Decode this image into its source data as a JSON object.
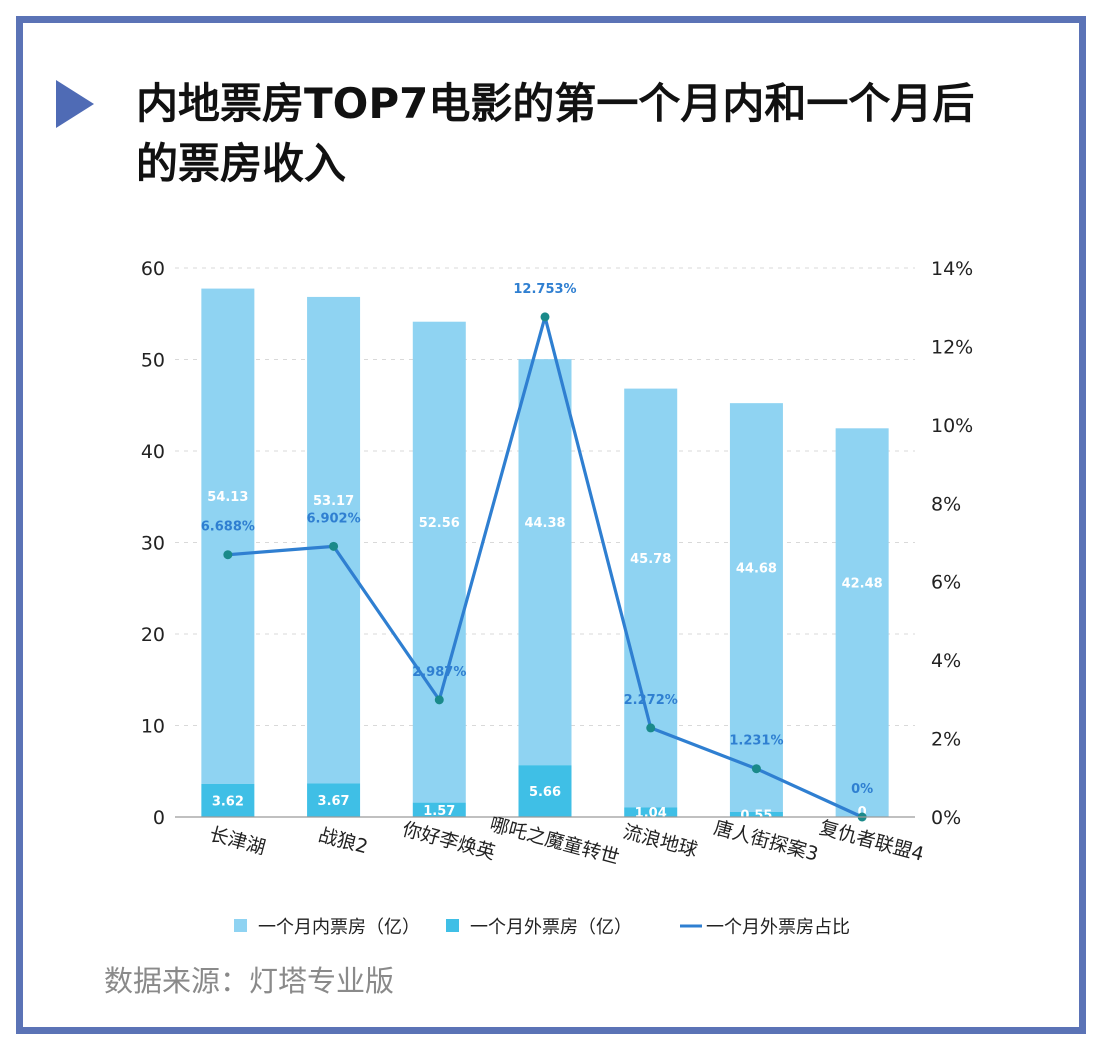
{
  "title": "内地票房TOP7电影的第一个月内和一个月后的票房收入",
  "source": "数据来源：灯塔专业版",
  "colors": {
    "frame": "#5b73b6",
    "marker": "#4f6bb5",
    "within_month": "#8fd3f2",
    "after_month": "#3fbfe6",
    "ratio_line": "#2f7fd1",
    "ratio_point": "#1a8a8a"
  },
  "chart_data": {
    "type": "bar",
    "stacked": true,
    "categories": [
      "长津湖",
      "战狼2",
      "你好李焕英",
      "哪吒之魔童转世",
      "流浪地球",
      "唐人街探案3",
      "复仇者联盟4"
    ],
    "series": [
      {
        "name": "一个月内票房（亿）",
        "type": "bar",
        "axis": "left",
        "values": [
          54.13,
          53.17,
          52.56,
          44.38,
          45.78,
          44.68,
          42.48
        ],
        "labels": [
          "54.13",
          "53.17",
          "52.56",
          "44.38",
          "45.78",
          "44.68",
          "42.48"
        ]
      },
      {
        "name": "一个月外票房（亿）",
        "type": "bar",
        "axis": "left",
        "values": [
          3.62,
          3.67,
          1.57,
          5.66,
          1.04,
          0.55,
          0
        ],
        "labels": [
          "3.62",
          "3.67",
          "1.57",
          "5.66",
          "1.04",
          "0.55",
          "0"
        ]
      },
      {
        "name": "一个月外票房占比",
        "type": "line",
        "axis": "right",
        "values": [
          6.688,
          6.902,
          2.987,
          12.753,
          2.272,
          1.231,
          0
        ],
        "labels": [
          "6.688%",
          "6.902%",
          "2.987%",
          "12.753%",
          "2.272%",
          "1.231%",
          "0%"
        ]
      }
    ],
    "y_left": {
      "ylim": [
        0,
        60
      ],
      "ticks": [
        "0",
        "10",
        "20",
        "30",
        "40",
        "50",
        "60"
      ]
    },
    "y_right": {
      "ylim": [
        0,
        14
      ],
      "ticks": [
        "0%",
        "2%",
        "4%",
        "6%",
        "8%",
        "10%",
        "12%",
        "14%"
      ]
    },
    "grid": "dashed horizontal",
    "legend": "bottom"
  }
}
